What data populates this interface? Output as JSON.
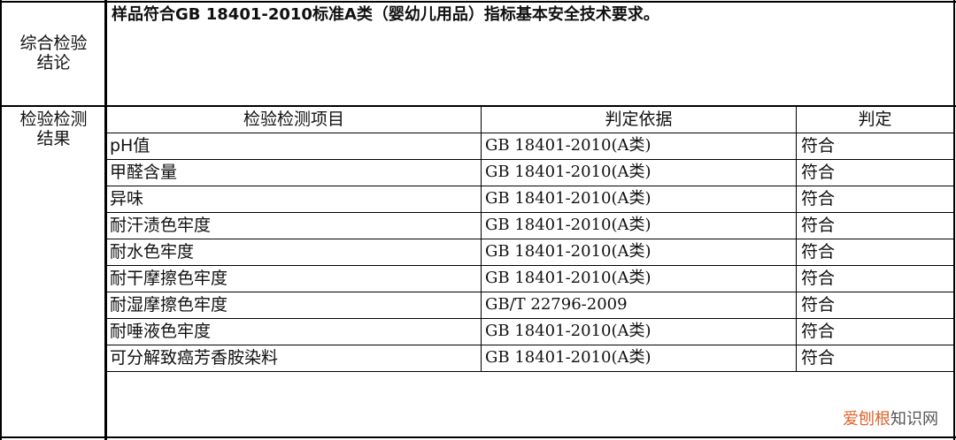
{
  "conclusion": {
    "label": "综合检验\n结论",
    "text": "样品符合GB 18401-2010标准A类（婴幼儿用品）指标基本安全技术要求。"
  },
  "results": {
    "label": "检验检测\n结果",
    "headers": [
      "检验检测项目",
      "判定依据",
      "判定"
    ],
    "rows": [
      {
        "item": "pH值",
        "basis": "GB 18401-2010(A类)",
        "verdict": "符合"
      },
      {
        "item": "甲醛含量",
        "basis": "GB 18401-2010(A类)",
        "verdict": "符合"
      },
      {
        "item": "异味",
        "basis": "GB 18401-2010(A类)",
        "verdict": "符合"
      },
      {
        "item": "耐汗渍色牢度",
        "basis": "GB 18401-2010(A类)",
        "verdict": "符合"
      },
      {
        "item": "耐水色牢度",
        "basis": "GB 18401-2010(A类)",
        "verdict": "符合"
      },
      {
        "item": "耐干摩擦色牢度",
        "basis": "GB 18401-2010(A类)",
        "verdict": "符合"
      },
      {
        "item": "耐湿摩擦色牢度",
        "basis": "GB/T 22796-2009",
        "verdict": "符合"
      },
      {
        "item": "耐唾液色牢度",
        "basis": "GB 18401-2010(A类)",
        "verdict": "符合"
      },
      {
        "item": "可分解致癌芳香胺染料",
        "basis": "GB 18401-2010(A类)",
        "verdict": "符合"
      }
    ]
  },
  "watermark": {
    "part1": "爱刨根",
    "part2": "知识网",
    "color1": "#e0622a",
    "color2": "#555555"
  }
}
